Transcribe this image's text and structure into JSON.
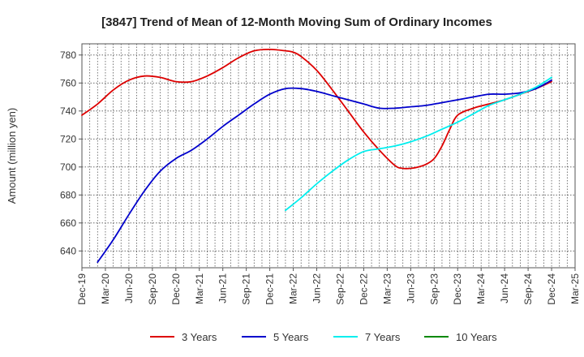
{
  "chart_data": {
    "type": "line",
    "title": "[3847]  Trend of Mean of 12-Month Moving Sum of Ordinary Incomes",
    "ylabel": "Amount (million yen)",
    "xlabel": "",
    "ylim": [
      628,
      788
    ],
    "yticks": [
      640,
      660,
      680,
      700,
      720,
      740,
      760,
      780
    ],
    "xlim": [
      0,
      63
    ],
    "xticks": [
      {
        "x": 0,
        "label": "Dec-19"
      },
      {
        "x": 3,
        "label": "Mar-20"
      },
      {
        "x": 6,
        "label": "Jun-20"
      },
      {
        "x": 9,
        "label": "Sep-20"
      },
      {
        "x": 12,
        "label": "Dec-20"
      },
      {
        "x": 15,
        "label": "Mar-21"
      },
      {
        "x": 18,
        "label": "Jun-21"
      },
      {
        "x": 21,
        "label": "Sep-21"
      },
      {
        "x": 24,
        "label": "Dec-21"
      },
      {
        "x": 27,
        "label": "Mar-22"
      },
      {
        "x": 30,
        "label": "Jun-22"
      },
      {
        "x": 33,
        "label": "Sep-22"
      },
      {
        "x": 36,
        "label": "Dec-22"
      },
      {
        "x": 39,
        "label": "Mar-23"
      },
      {
        "x": 42,
        "label": "Jun-23"
      },
      {
        "x": 45,
        "label": "Sep-23"
      },
      {
        "x": 48,
        "label": "Dec-23"
      },
      {
        "x": 51,
        "label": "Mar-24"
      },
      {
        "x": 54,
        "label": "Jun-24"
      },
      {
        "x": 57,
        "label": "Sep-24"
      },
      {
        "x": 60,
        "label": "Dec-24"
      },
      {
        "x": 63,
        "label": "Mar-25"
      }
    ],
    "grid": true,
    "legend_position": "bottom",
    "series": [
      {
        "name": "3 Years",
        "color": "#dd0000",
        "x": [
          0,
          2,
          4,
          6,
          8,
          10,
          12,
          14,
          16,
          18,
          20,
          22,
          24,
          26,
          27,
          28,
          30,
          32,
          34,
          36,
          38,
          40,
          41,
          42,
          43,
          44,
          45,
          46,
          47,
          48,
          50,
          52,
          54,
          56,
          58,
          60
        ],
        "values": [
          737,
          745,
          755,
          762,
          765,
          764,
          761,
          761,
          765,
          771,
          778,
          783,
          784,
          783,
          782,
          779,
          769,
          755,
          740,
          725,
          712,
          701,
          699,
          699,
          700,
          702,
          706,
          715,
          727,
          737,
          742,
          745,
          748,
          752,
          756,
          761
        ]
      },
      {
        "name": "5 Years",
        "color": "#0000cc",
        "x": [
          2,
          4,
          6,
          8,
          10,
          12,
          14,
          16,
          18,
          20,
          22,
          24,
          26,
          28,
          30,
          32,
          34,
          36,
          38,
          40,
          42,
          44,
          46,
          48,
          50,
          52,
          54,
          56,
          58,
          60
        ],
        "values": [
          632,
          648,
          666,
          683,
          697,
          706,
          712,
          720,
          729,
          737,
          745,
          752,
          756,
          756,
          754,
          751,
          748,
          745,
          742,
          742,
          743,
          744,
          746,
          748,
          750,
          752,
          752,
          753,
          756,
          762
        ]
      },
      {
        "name": "7 Years",
        "color": "#00eeee",
        "x": [
          26,
          28,
          30,
          32,
          34,
          36,
          38,
          40,
          42,
          44,
          46,
          48,
          50,
          52,
          54,
          56,
          58,
          60
        ],
        "values": [
          669,
          678,
          688,
          697,
          705,
          711,
          713,
          715,
          718,
          722,
          727,
          732,
          738,
          744,
          748,
          752,
          757,
          764
        ]
      },
      {
        "name": "10 Years",
        "color": "#008800",
        "x": [],
        "values": []
      }
    ]
  }
}
